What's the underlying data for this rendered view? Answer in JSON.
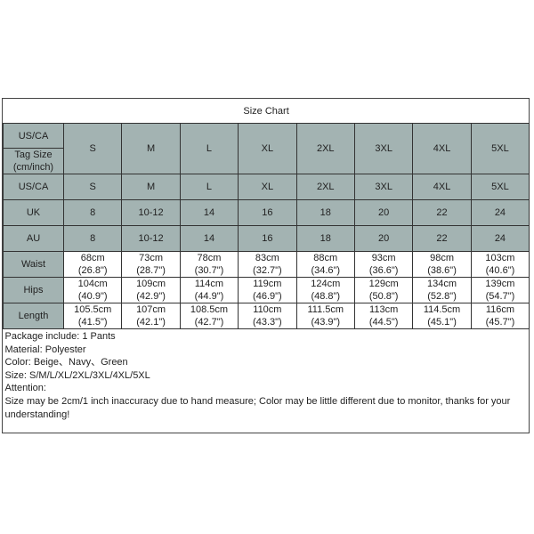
{
  "title": "Size Chart",
  "header_labels": {
    "us_ca": "US/CA",
    "tag_size": "Tag Size (cm/inch)"
  },
  "tag_sizes": [
    "S",
    "M",
    "L",
    "XL",
    "2XL",
    "3XL",
    "4XL",
    "5XL"
  ],
  "rows": [
    {
      "label": "US/CA",
      "values": [
        "S",
        "M",
        "L",
        "XL",
        "2XL",
        "3XL",
        "4XL",
        "5XL"
      ]
    },
    {
      "label": "UK",
      "values": [
        "8",
        "10-12",
        "14",
        "16",
        "18",
        "20",
        "22",
        "24"
      ]
    },
    {
      "label": "AU",
      "values": [
        "8",
        "10-12",
        "14",
        "16",
        "18",
        "20",
        "22",
        "24"
      ]
    }
  ],
  "measurements": [
    {
      "label": "Waist",
      "cm": [
        "68cm",
        "73cm",
        "78cm",
        "83cm",
        "88cm",
        "93cm",
        "98cm",
        "103cm"
      ],
      "inch": [
        "(26.8\")",
        "(28.7\")",
        "(30.7\")",
        "(32.7\")",
        "(34.6\")",
        "(36.6\")",
        "(38.6\")",
        "(40.6\")"
      ]
    },
    {
      "label": "Hips",
      "cm": [
        "104cm",
        "109cm",
        "114cm",
        "119cm",
        "124cm",
        "129cm",
        "134cm",
        "139cm"
      ],
      "inch": [
        "(40.9\")",
        "(42.9\")",
        "(44.9\")",
        "(46.9\")",
        "(48.8\")",
        "(50.8\")",
        "(52.8\")",
        "(54.7\")"
      ]
    },
    {
      "label": "Length",
      "cm": [
        "105.5cm",
        "107cm",
        "108.5cm",
        "110cm",
        "111.5cm",
        "113cm",
        "114.5cm",
        "116cm"
      ],
      "inch": [
        "(41.5\")",
        "(42.1\")",
        "(42.7\")",
        "(43.3\")",
        "(43.9\")",
        "(44.5\")",
        "(45.1\")",
        "(45.7\")"
      ]
    }
  ],
  "notes": [
    "Package include: 1 Pants",
    "Material: Polyester",
    "Color: Beige、Navy、Green",
    "Size: S/M/L/XL/2XL/3XL/4XL/5XL",
    "Attention:",
    "Size may be 2cm/1 inch inaccuracy due to hand measure; Color may be little different due to monitor, thanks for your understanding!"
  ],
  "colors": {
    "header_fill": "#a3b3b2",
    "border": "#333333"
  }
}
